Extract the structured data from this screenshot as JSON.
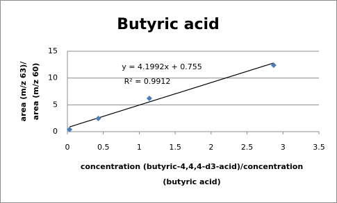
{
  "chart_data": {
    "type": "scatter",
    "title": "Butyric acid",
    "x_label": [
      "concentration  (butyric-4,4,4-d3-acid)/concentration",
      "(butyric acid)"
    ],
    "y_label": [
      "area (m/z 63)/",
      "area (m/z 60)"
    ],
    "series": [
      {
        "name": "Butyric acid",
        "color": "#4a7ebb",
        "x": [
          0.03,
          0.43,
          1.14,
          2.87
        ],
        "values": [
          0.4,
          2.46,
          6.2,
          12.4
        ]
      }
    ],
    "trendline": {
      "slope": 4.1992,
      "intercept": 0.755,
      "label": "y = 4.1992x  + 0.755",
      "r2_label": "R² = 0.9912",
      "color": "#000000"
    },
    "xlim": [
      0,
      3.5
    ],
    "xticks": [
      0,
      0.5,
      1,
      1.5,
      2,
      2.5,
      3,
      3.5
    ],
    "ylim": [
      0,
      15
    ],
    "yticks": [
      0,
      5,
      10,
      15
    ],
    "grid": true
  }
}
